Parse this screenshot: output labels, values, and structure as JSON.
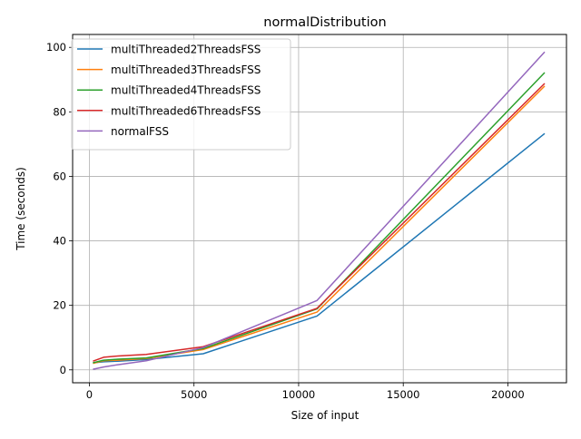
{
  "chart_data": {
    "type": "line",
    "title": "normalDistribution",
    "xlabel": "Size of input",
    "ylabel": "Time (seconds)",
    "xlim": [
      -800,
      22800
    ],
    "ylim": [
      -4,
      104
    ],
    "xticks": [
      0,
      5000,
      10000,
      15000,
      20000
    ],
    "yticks": [
      0,
      20,
      40,
      60,
      80,
      100
    ],
    "grid": true,
    "legend_position": "top-left",
    "series": [
      {
        "name": "multiThreaded2ThreadsFSS",
        "color": "#1f77b4",
        "x": [
          170,
          680,
          1360,
          2720,
          5440,
          10880,
          21760
        ],
        "y": [
          2.2,
          2.5,
          2.7,
          3.2,
          5.0,
          16.7,
          73.3
        ]
      },
      {
        "name": "multiThreaded3ThreadsFSS",
        "color": "#ff7f0e",
        "x": [
          170,
          680,
          1360,
          2720,
          5440,
          10880,
          21760
        ],
        "y": [
          2.0,
          2.8,
          3.0,
          3.5,
          6.3,
          17.9,
          88.0
        ]
      },
      {
        "name": "multiThreaded4ThreadsFSS",
        "color": "#2ca02c",
        "x": [
          170,
          680,
          1360,
          2720,
          5440,
          10880,
          21760
        ],
        "y": [
          2.2,
          3.0,
          3.3,
          3.7,
          6.6,
          18.9,
          92.2
        ]
      },
      {
        "name": "multiThreaded6ThreadsFSS",
        "color": "#d62728",
        "x": [
          170,
          680,
          1360,
          2720,
          5440,
          10880,
          21760
        ],
        "y": [
          2.7,
          3.9,
          4.3,
          4.8,
          7.2,
          19.1,
          88.8
        ]
      },
      {
        "name": "normalFSS",
        "color": "#9467bd",
        "x": [
          170,
          680,
          1360,
          2720,
          5440,
          10880,
          21760
        ],
        "y": [
          0.2,
          0.9,
          1.6,
          2.8,
          6.9,
          21.5,
          98.6
        ]
      }
    ]
  }
}
